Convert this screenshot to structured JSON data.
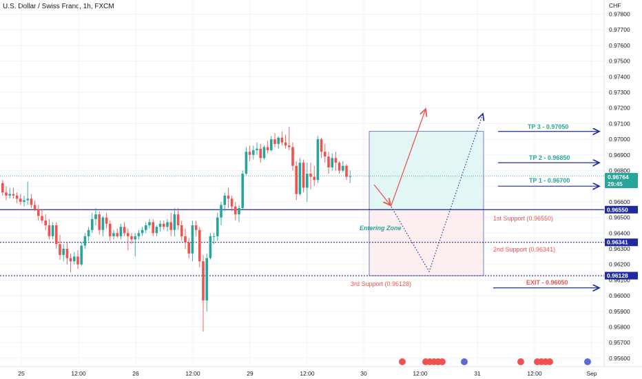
{
  "header": {
    "title": "U.S. Dollar / Swiss Franc, 1h, FXCM",
    "currency": "CHF"
  },
  "colors": {
    "up": "#26a69a",
    "down": "#ef5350",
    "line": "#1e2a9e",
    "tp": "#26a69a",
    "exit": "#ef5350",
    "profit_zone": "#e0f5f5",
    "loss_zone": "#fdecee",
    "arrow": "#ef5350",
    "dotted": "#1e2a9e"
  },
  "price_scale": {
    "ticks": [
      "0.97800",
      "0.97700",
      "0.97600",
      "0.97500",
      "0.97400",
      "0.97300",
      "0.97200",
      "0.97100",
      "0.97000",
      "0.96900",
      "0.96800",
      "0.96700",
      "0.96600",
      "0.96500",
      "0.96400",
      "0.96300",
      "0.96200",
      "0.96100",
      "0.96000",
      "0.95900",
      "0.95800",
      "0.95700",
      "0.95600"
    ],
    "current_price": "0.96764",
    "countdown": "29:45",
    "level_tags": [
      "0.96550",
      "0.96341",
      "0.96128"
    ]
  },
  "time_axis": {
    "labels": [
      "25",
      "12:00",
      "26",
      "12:00",
      "29",
      "12:00",
      "30",
      "12:00",
      "31",
      "12:00",
      "Sep"
    ]
  },
  "annotations": {
    "tp3": "TP 3 - 0.97050",
    "tp2": "TP 2 - 0.96850",
    "tp1": "TP 1 - 0.96700",
    "support1": "1st Support (0.96550)",
    "support2": "2nd Support (0.96341)",
    "support3": "3rd Support (0.96128)",
    "exit": "EXIT - 0.96050",
    "entry": "Entering Zone"
  },
  "chart_data": {
    "type": "candlestick",
    "title": "U.S. Dollar / Swiss Franc, 1h, FXCM",
    "ylim": [
      0.9555,
      0.9783
    ],
    "levels": [
      0.9655,
      0.96341,
      0.96128
    ],
    "targets": [
      0.967,
      0.9685,
      0.9705
    ],
    "exit": 0.9605,
    "candles": [
      [
        0.9672,
        0.9674,
        0.9664,
        0.9666
      ],
      [
        0.9666,
        0.967,
        0.9661,
        0.9664
      ],
      [
        0.9664,
        0.9669,
        0.9662,
        0.9665
      ],
      [
        0.9665,
        0.9669,
        0.9662,
        0.9664
      ],
      [
        0.9664,
        0.9666,
        0.9659,
        0.9662
      ],
      [
        0.9662,
        0.9665,
        0.9658,
        0.966
      ],
      [
        0.966,
        0.9664,
        0.9657,
        0.9661
      ],
      [
        0.9661,
        0.9673,
        0.9658,
        0.9662
      ],
      [
        0.9662,
        0.9665,
        0.9656,
        0.9658
      ],
      [
        0.9658,
        0.9661,
        0.9654,
        0.9655
      ],
      [
        0.9655,
        0.9658,
        0.9648,
        0.9651
      ],
      [
        0.9651,
        0.9655,
        0.9646,
        0.9648
      ],
      [
        0.9648,
        0.9652,
        0.9642,
        0.9645
      ],
      [
        0.9645,
        0.9649,
        0.9636,
        0.9638
      ],
      [
        0.9638,
        0.9647,
        0.9636,
        0.9645
      ],
      [
        0.9645,
        0.9647,
        0.963,
        0.9633
      ],
      [
        0.9633,
        0.9639,
        0.9623,
        0.9626
      ],
      [
        0.9626,
        0.9633,
        0.9622,
        0.963
      ],
      [
        0.963,
        0.9634,
        0.962,
        0.9624
      ],
      [
        0.9624,
        0.9627,
        0.9615,
        0.9622
      ],
      [
        0.9622,
        0.9628,
        0.962,
        0.9625
      ],
      [
        0.9625,
        0.9629,
        0.9617,
        0.962
      ],
      [
        0.962,
        0.9634,
        0.9619,
        0.9632
      ],
      [
        0.9632,
        0.964,
        0.963,
        0.9638
      ],
      [
        0.9638,
        0.9644,
        0.9635,
        0.9642
      ],
      [
        0.9642,
        0.9653,
        0.964,
        0.9649
      ],
      [
        0.9649,
        0.9656,
        0.9645,
        0.9652
      ],
      [
        0.9652,
        0.9654,
        0.9639,
        0.9642
      ],
      [
        0.9642,
        0.9651,
        0.9638,
        0.965
      ],
      [
        0.965,
        0.9653,
        0.9643,
        0.9646
      ],
      [
        0.9646,
        0.9648,
        0.9635,
        0.9638
      ],
      [
        0.9638,
        0.9642,
        0.9636,
        0.964
      ],
      [
        0.964,
        0.9643,
        0.9637,
        0.9638
      ],
      [
        0.9638,
        0.9646,
        0.9636,
        0.9644
      ],
      [
        0.9644,
        0.9647,
        0.9638,
        0.964
      ],
      [
        0.964,
        0.9643,
        0.9629,
        0.9638
      ],
      [
        0.9638,
        0.964,
        0.9633,
        0.9636
      ],
      [
        0.9636,
        0.964,
        0.9625,
        0.9638
      ],
      [
        0.9638,
        0.9642,
        0.9636,
        0.964
      ],
      [
        0.964,
        0.9644,
        0.9638,
        0.9642
      ],
      [
        0.9642,
        0.9647,
        0.964,
        0.9645
      ],
      [
        0.9645,
        0.9649,
        0.9643,
        0.9647
      ],
      [
        0.9647,
        0.9649,
        0.9638,
        0.964
      ],
      [
        0.964,
        0.9645,
        0.9638,
        0.9644
      ],
      [
        0.9644,
        0.9648,
        0.9641,
        0.9646
      ],
      [
        0.9646,
        0.9648,
        0.9642,
        0.9644
      ],
      [
        0.9644,
        0.9649,
        0.9641,
        0.9647
      ],
      [
        0.9647,
        0.9653,
        0.9638,
        0.9642
      ],
      [
        0.9642,
        0.9656,
        0.9638,
        0.9652
      ],
      [
        0.9652,
        0.9656,
        0.9642,
        0.9645
      ],
      [
        0.9645,
        0.9648,
        0.9635,
        0.9638
      ],
      [
        0.9638,
        0.9643,
        0.963,
        0.9634
      ],
      [
        0.9634,
        0.9637,
        0.9624,
        0.9627
      ],
      [
        0.9627,
        0.9648,
        0.9622,
        0.9645
      ],
      [
        0.9645,
        0.9648,
        0.9638,
        0.9642
      ],
      [
        0.9642,
        0.9644,
        0.9618,
        0.9622
      ],
      [
        0.9622,
        0.9626,
        0.9577,
        0.9597
      ],
      [
        0.9597,
        0.9627,
        0.959,
        0.9624
      ],
      [
        0.9624,
        0.964,
        0.9623,
        0.9638
      ],
      [
        0.9638,
        0.964,
        0.9633,
        0.9638
      ],
      [
        0.9638,
        0.9653,
        0.9635,
        0.965
      ],
      [
        0.965,
        0.966,
        0.9645,
        0.9658
      ],
      [
        0.9658,
        0.9666,
        0.9654,
        0.9664
      ],
      [
        0.9664,
        0.9669,
        0.9656,
        0.9662
      ],
      [
        0.9662,
        0.9664,
        0.9654,
        0.9657
      ],
      [
        0.9657,
        0.966,
        0.9648,
        0.9652
      ],
      [
        0.9652,
        0.9658,
        0.9647,
        0.9656
      ],
      [
        0.9656,
        0.968,
        0.9655,
        0.9678
      ],
      [
        0.9678,
        0.9695,
        0.9677,
        0.9692
      ],
      [
        0.9692,
        0.9696,
        0.9686,
        0.969
      ],
      [
        0.969,
        0.9696,
        0.9687,
        0.9693
      ],
      [
        0.9693,
        0.9698,
        0.969,
        0.9694
      ],
      [
        0.9694,
        0.9697,
        0.9685,
        0.9688
      ],
      [
        0.9688,
        0.9696,
        0.9687,
        0.9695
      ],
      [
        0.9695,
        0.9699,
        0.9691,
        0.9693
      ],
      [
        0.9693,
        0.9702,
        0.9692,
        0.97
      ],
      [
        0.97,
        0.9704,
        0.9695,
        0.9697
      ],
      [
        0.9697,
        0.9702,
        0.9694,
        0.9701
      ],
      [
        0.9701,
        0.9705,
        0.9696,
        0.9698
      ],
      [
        0.9698,
        0.9703,
        0.9694,
        0.9696
      ],
      [
        0.9696,
        0.9708,
        0.9693,
        0.9695
      ],
      [
        0.9695,
        0.9698,
        0.968,
        0.9683
      ],
      [
        0.9683,
        0.9686,
        0.9661,
        0.9665
      ],
      [
        0.9665,
        0.9688,
        0.9664,
        0.9685
      ],
      [
        0.9685,
        0.9687,
        0.9666,
        0.9669
      ],
      [
        0.9669,
        0.9685,
        0.966,
        0.9678
      ],
      [
        0.9678,
        0.9685,
        0.9668,
        0.9676
      ],
      [
        0.9676,
        0.9683,
        0.967,
        0.9674
      ],
      [
        0.9674,
        0.9702,
        0.9672,
        0.97
      ],
      [
        0.97,
        0.9701,
        0.9688,
        0.9692
      ],
      [
        0.9692,
        0.9697,
        0.9685,
        0.9689
      ],
      [
        0.9689,
        0.9692,
        0.9678,
        0.9682
      ],
      [
        0.9682,
        0.9691,
        0.968,
        0.9688
      ],
      [
        0.9688,
        0.9692,
        0.968,
        0.9685
      ],
      [
        0.9685,
        0.9686,
        0.9678,
        0.968
      ],
      [
        0.968,
        0.9686,
        0.9679,
        0.9683
      ],
      [
        0.9683,
        0.9684,
        0.9674,
        0.9676
      ],
      [
        0.9676,
        0.968,
        0.9672,
        0.96764
      ]
    ]
  }
}
